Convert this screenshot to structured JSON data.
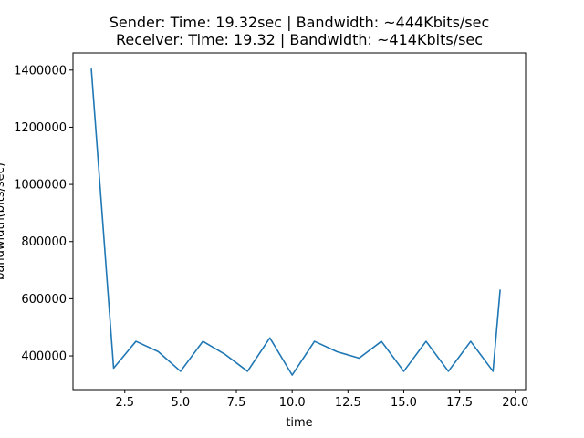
{
  "chart_data": {
    "type": "line",
    "title": [
      "Sender: Time: 19.32sec | Bandwidth: ~444Kbits/sec",
      "Receiver: Time: 19.32 | Bandwidth: ~414Kbits/sec"
    ],
    "xlabel": "time",
    "ylabel": "bandwidth(bits/sec)",
    "xlim": [
      0.18,
      20.46
    ],
    "ylim": [
      282000,
      1460000
    ],
    "xticks": [
      "2.5",
      "5.0",
      "7.5",
      "10.0",
      "12.5",
      "15.0",
      "17.5",
      "20.0"
    ],
    "xtick_values": [
      2.5,
      5.0,
      7.5,
      10.0,
      12.5,
      15.0,
      17.5,
      20.0
    ],
    "yticks": [
      "400000",
      "600000",
      "800000",
      "1000000",
      "1200000",
      "1400000"
    ],
    "ytick_values": [
      400000,
      600000,
      800000,
      1000000,
      1200000,
      1400000
    ],
    "grid": false,
    "series": [
      {
        "color": "#1f77b4",
        "x": [
          1,
          2,
          3,
          4,
          5,
          6,
          7,
          8,
          9,
          10,
          11,
          12,
          13,
          14,
          15,
          16,
          17,
          18,
          19,
          19.32
        ],
        "y": [
          1405000,
          357000,
          451000,
          415000,
          346000,
          451000,
          405000,
          346000,
          463000,
          333000,
          451000,
          415000,
          392000,
          451000,
          346000,
          451000,
          346000,
          451000,
          346000,
          632000
        ]
      }
    ]
  }
}
